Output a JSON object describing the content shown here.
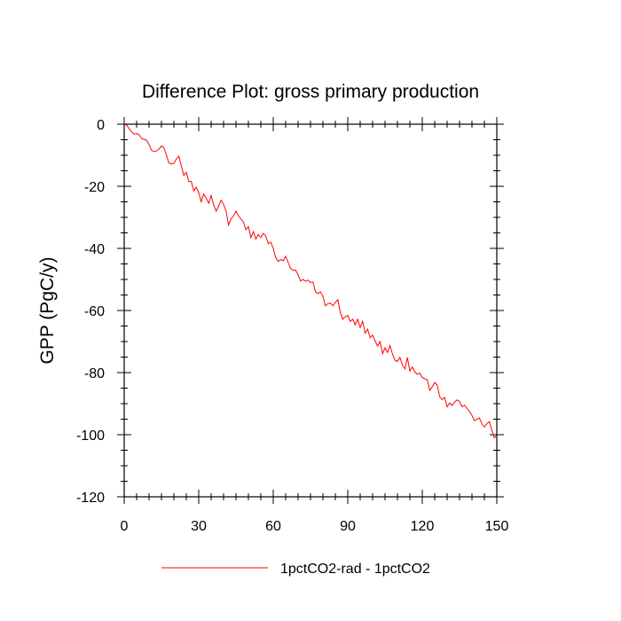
{
  "chart_data": {
    "type": "line",
    "title": "Difference Plot: gross primary production",
    "xlabel": "",
    "ylabel": "GPP  (PgC/y)",
    "xlim": [
      0,
      150
    ],
    "ylim": [
      -120,
      0
    ],
    "x_ticks": [
      0,
      30,
      60,
      90,
      120,
      150
    ],
    "x_tick_labels": [
      "0",
      "30",
      "60",
      "90",
      "120",
      "150"
    ],
    "y_ticks": [
      0,
      -20,
      -40,
      -60,
      -80,
      -100,
      -120
    ],
    "y_tick_labels": [
      "0",
      "-20",
      "-40",
      "-60",
      "-80",
      "-100",
      "-120"
    ],
    "grid": false,
    "legend": "bottom",
    "series": [
      {
        "name": "1pctCO2-rad - 1pctCO2",
        "color": "#ff0000",
        "x": [
          0,
          1,
          2,
          3,
          4,
          5,
          6,
          7,
          8,
          9,
          10,
          11,
          12,
          13,
          14,
          15,
          16,
          17,
          18,
          19,
          20,
          21,
          22,
          23,
          24,
          25,
          26,
          27,
          28,
          29,
          30,
          31,
          32,
          33,
          34,
          35,
          36,
          37,
          38,
          39,
          40,
          41,
          42,
          43,
          44,
          45,
          46,
          47,
          48,
          49,
          50,
          51,
          52,
          53,
          54,
          55,
          56,
          57,
          58,
          59,
          60,
          61,
          62,
          63,
          64,
          65,
          66,
          67,
          68,
          69,
          70,
          71,
          72,
          73,
          74,
          75,
          76,
          77,
          78,
          79,
          80,
          81,
          82,
          83,
          84,
          85,
          86,
          87,
          88,
          89,
          90,
          91,
          92,
          93,
          94,
          95,
          96,
          97,
          98,
          99,
          100,
          101,
          102,
          103,
          104,
          105,
          106,
          107,
          108,
          109,
          110,
          111,
          112,
          113,
          114,
          115,
          116,
          117,
          118,
          119,
          120,
          121,
          122,
          123,
          124,
          125,
          126,
          127,
          128,
          129,
          130,
          131,
          132,
          133,
          134,
          135,
          136,
          137,
          138,
          139,
          140,
          141,
          142,
          143,
          144,
          145,
          146,
          147,
          148,
          149,
          150
        ],
        "values": [
          0.0,
          -0.3,
          -1.5,
          -2.5,
          -3.2,
          -3.0,
          -3.4,
          -4.6,
          -4.9,
          -5.2,
          -6.5,
          -8.4,
          -8.8,
          -8.6,
          -8.0,
          -7.0,
          -7.6,
          -10.0,
          -12.5,
          -12.8,
          -12.6,
          -11.2,
          -10.3,
          -13.5,
          -16.5,
          -15.5,
          -18.5,
          -18.4,
          -21.5,
          -20.3,
          -22.0,
          -25.0,
          -22.5,
          -23.8,
          -25.5,
          -23.0,
          -25.9,
          -28.0,
          -26.4,
          -24.5,
          -25.8,
          -28.0,
          -32.5,
          -30.5,
          -29.5,
          -28.0,
          -29.5,
          -30.5,
          -31.5,
          -34.0,
          -33.0,
          -36.5,
          -34.6,
          -37.0,
          -35.5,
          -36.5,
          -35.2,
          -36.0,
          -38.5,
          -38.0,
          -40.0,
          -43.0,
          -44.2,
          -43.6,
          -44.0,
          -42.5,
          -44.5,
          -46.5,
          -47.0,
          -47.0,
          -48.5,
          -50.5,
          -50.0,
          -50.6,
          -50.2,
          -51.0,
          -50.8,
          -54.0,
          -54.5,
          -54.0,
          -55.4,
          -58.5,
          -57.8,
          -57.6,
          -58.5,
          -57.4,
          -56.5,
          -60.6,
          -62.8,
          -62.0,
          -61.6,
          -63.5,
          -62.8,
          -64.6,
          -62.8,
          -65.5,
          -63.5,
          -67.3,
          -66.0,
          -68.8,
          -67.9,
          -69.8,
          -71.5,
          -70.0,
          -73.9,
          -72.0,
          -73.5,
          -71.3,
          -74.0,
          -76.1,
          -76.4,
          -75.1,
          -77.6,
          -78.8,
          -75.1,
          -79.5,
          -78.2,
          -79.8,
          -80.5,
          -80.2,
          -81.6,
          -82.0,
          -82.3,
          -85.7,
          -84.6,
          -83.2,
          -84.0,
          -87.7,
          -88.7,
          -88.0,
          -91.0,
          -89.8,
          -90.6,
          -89.5,
          -88.8,
          -89.3,
          -91.0,
          -90.5,
          -91.5,
          -92.5,
          -93.8,
          -95.5,
          -95.0,
          -94.6,
          -96.5,
          -97.5,
          -96.5,
          -95.8,
          -98.5,
          -101.0,
          -100.2
        ]
      }
    ]
  }
}
